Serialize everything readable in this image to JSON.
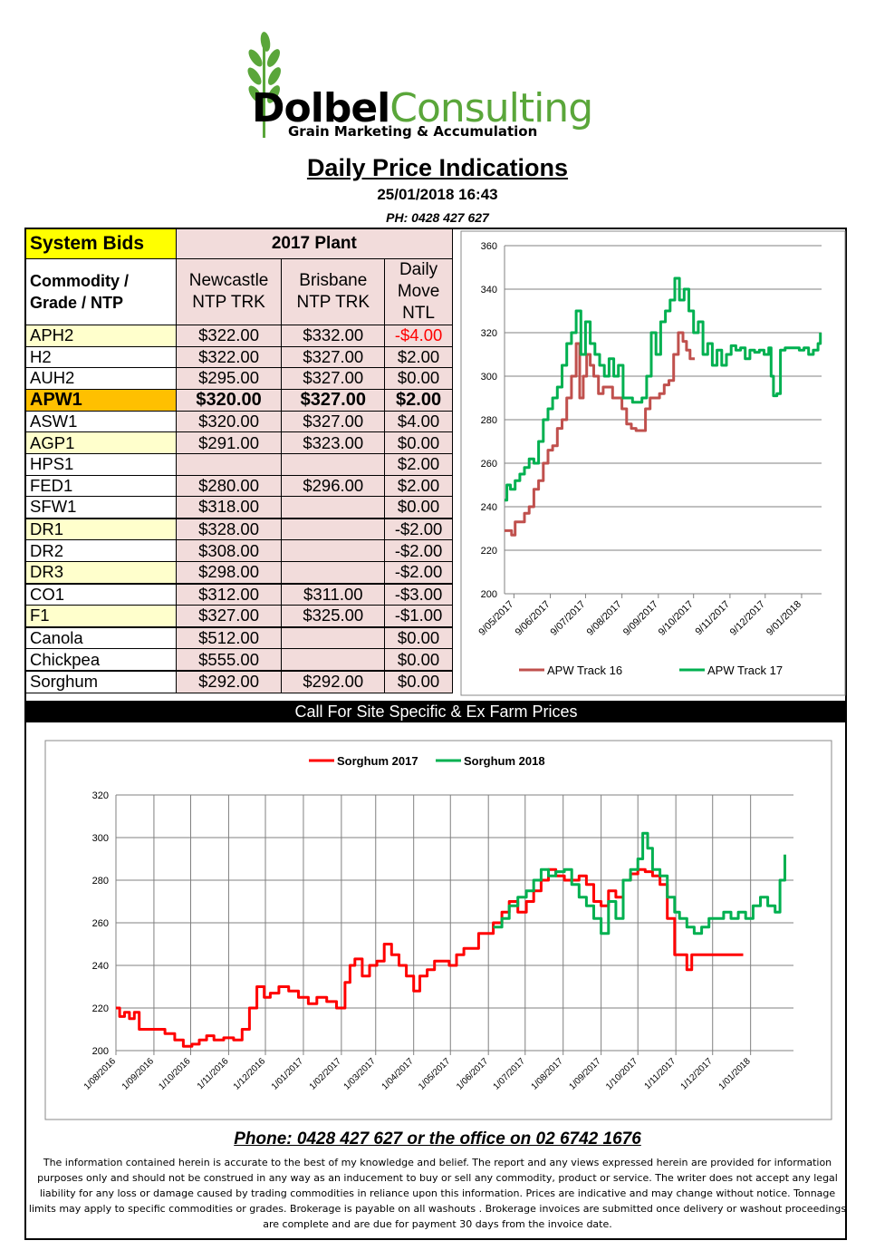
{
  "header": {
    "logo_word1": "Dolbel",
    "logo_word2": "Consulting",
    "logo_sub": "Grain Marketing & Accumulation",
    "title": "Daily Price Indications",
    "datetime": "25/01/2018 16:43",
    "phone": "PH: 0428 427 627"
  },
  "table": {
    "system_bids": "System Bids",
    "plant": "2017 Plant",
    "commodity_header": "Commodity / Grade / NTP",
    "col_newcastle": "Newcastle NTP TRK",
    "col_brisbane": "Brisbane NTP TRK",
    "col_move": "Daily Move NTL",
    "rows": [
      {
        "grade": "APH2",
        "newcastle": "$322.00",
        "brisbane": "$332.00",
        "move": "-$4.00"
      },
      {
        "grade": "H2",
        "newcastle": "$322.00",
        "brisbane": "$327.00",
        "move": "$2.00"
      },
      {
        "grade": "AUH2",
        "newcastle": "$295.00",
        "brisbane": "$327.00",
        "move": "$0.00"
      },
      {
        "grade": "APW1",
        "newcastle": "$320.00",
        "brisbane": "$327.00",
        "move": "$2.00"
      },
      {
        "grade": "ASW1",
        "newcastle": "$320.00",
        "brisbane": "$327.00",
        "move": "$4.00"
      },
      {
        "grade": "AGP1",
        "newcastle": "$291.00",
        "brisbane": "$323.00",
        "move": "$0.00"
      },
      {
        "grade": "HPS1",
        "newcastle": "",
        "brisbane": "",
        "move": "$2.00"
      },
      {
        "grade": "FED1",
        "newcastle": "$280.00",
        "brisbane": "$296.00",
        "move": "$2.00"
      },
      {
        "grade": "SFW1",
        "newcastle": "$318.00",
        "brisbane": "",
        "move": "$0.00"
      },
      {
        "grade": "DR1",
        "newcastle": "$328.00",
        "brisbane": "",
        "move": "-$2.00"
      },
      {
        "grade": "DR2",
        "newcastle": "$308.00",
        "brisbane": "",
        "move": "-$2.00"
      },
      {
        "grade": "DR3",
        "newcastle": "$298.00",
        "brisbane": "",
        "move": "-$2.00"
      },
      {
        "grade": "CO1",
        "newcastle": "$312.00",
        "brisbane": "$311.00",
        "move": "-$3.00"
      },
      {
        "grade": "F1",
        "newcastle": "$327.00",
        "brisbane": "$325.00",
        "move": "-$1.00"
      },
      {
        "grade": "Canola",
        "newcastle": "$512.00",
        "brisbane": "",
        "move": "$0.00"
      },
      {
        "grade": "Chickpea",
        "newcastle": "$555.00",
        "brisbane": "",
        "move": "$0.00"
      },
      {
        "grade": "Sorghum",
        "newcastle": "$292.00",
        "brisbane": "$292.00",
        "move": "$0.00"
      }
    ]
  },
  "call_bar": "Call For Site Specific & Ex Farm Prices",
  "footer": {
    "phone": "Phone: 0428 427 627 or the office on 02 6742 1676",
    "disclaimer": "The information contained herein is accurate to the best of my knowledge and belief.  The report and any views expressed herein are provided for information purposes only and should not be construed in any way as an inducement to buy or sell any commodity, product or service. The writer does not accept any legal liability for any loss or damage caused by trading commodities in reliance upon this information. Prices are indicative and may change without notice. Tonnage limits may apply to specific commodities or grades.  Brokerage is payable on all washouts . Brokerage invoices are submitted once delivery or washout proceedings are complete and are due for payment 30 days from the invoice date."
  },
  "colors": {
    "red": "#c0504d",
    "green": "#00b050",
    "bright_red": "#ff0000"
  },
  "chart_data": [
    {
      "type": "line",
      "title": "",
      "xlabel": "",
      "ylabel": "",
      "ylim": [
        200,
        360
      ],
      "yticks": [
        200,
        220,
        240,
        260,
        280,
        300,
        320,
        340,
        360
      ],
      "xlim": [
        "2017-05-01",
        "2018-01-26"
      ],
      "xtick_labels": [
        "9/05/2017",
        "9/06/2017",
        "9/07/2017",
        "9/08/2017",
        "9/09/2017",
        "9/10/2017",
        "9/11/2017",
        "9/12/2017",
        "9/01/2018"
      ],
      "grid": true,
      "legend": "bottom",
      "series": [
        {
          "name": "APW Track 16",
          "color": "#c0504d",
          "x": [
            "2017-05-01",
            "2017-05-04",
            "2017-05-07",
            "2017-05-10",
            "2017-05-14",
            "2017-05-18",
            "2017-05-22",
            "2017-05-26",
            "2017-05-30",
            "2017-06-03",
            "2017-06-07",
            "2017-06-11",
            "2017-06-15",
            "2017-06-19",
            "2017-06-23",
            "2017-06-27",
            "2017-07-01",
            "2017-07-04",
            "2017-07-07",
            "2017-07-10",
            "2017-07-13",
            "2017-07-16",
            "2017-07-20",
            "2017-07-24",
            "2017-07-28",
            "2017-08-01",
            "2017-08-05",
            "2017-08-09",
            "2017-08-13",
            "2017-08-17",
            "2017-08-21",
            "2017-08-25",
            "2017-08-29",
            "2017-09-02",
            "2017-09-06",
            "2017-09-10",
            "2017-09-14",
            "2017-09-18",
            "2017-09-22",
            "2017-09-26",
            "2017-09-30",
            "2017-10-03",
            "2017-10-06",
            "2017-10-10"
          ],
          "y": [
            229,
            229,
            227,
            233,
            233,
            237,
            240,
            248,
            252,
            260,
            266,
            268,
            276,
            280,
            290,
            300,
            315,
            290,
            300,
            310,
            305,
            300,
            292,
            295,
            295,
            290,
            290,
            285,
            278,
            276,
            275,
            275,
            285,
            290,
            290,
            292,
            296,
            298,
            310,
            320,
            316,
            312,
            308,
            308
          ]
        },
        {
          "name": "APW Track 17",
          "color": "#00b050",
          "x": [
            "2017-05-01",
            "2017-05-03",
            "2017-05-06",
            "2017-05-10",
            "2017-05-14",
            "2017-05-18",
            "2017-05-22",
            "2017-05-26",
            "2017-05-30",
            "2017-06-03",
            "2017-06-07",
            "2017-06-11",
            "2017-06-15",
            "2017-06-19",
            "2017-06-23",
            "2017-06-27",
            "2017-07-01",
            "2017-07-05",
            "2017-07-09",
            "2017-07-13",
            "2017-07-17",
            "2017-07-21",
            "2017-07-25",
            "2017-07-29",
            "2017-08-02",
            "2017-08-06",
            "2017-08-10",
            "2017-08-14",
            "2017-08-18",
            "2017-08-22",
            "2017-08-26",
            "2017-08-30",
            "2017-09-03",
            "2017-09-07",
            "2017-09-11",
            "2017-09-15",
            "2017-09-19",
            "2017-09-23",
            "2017-09-27",
            "2017-10-01",
            "2017-10-05",
            "2017-10-09",
            "2017-10-13",
            "2017-10-17",
            "2017-10-21",
            "2017-10-25",
            "2017-10-29",
            "2017-11-02",
            "2017-11-06",
            "2017-11-10",
            "2017-11-14",
            "2017-11-18",
            "2017-11-22",
            "2017-11-26",
            "2017-11-30",
            "2017-12-04",
            "2017-12-08",
            "2017-12-12",
            "2017-12-14",
            "2017-12-16",
            "2017-12-19",
            "2017-12-22",
            "2017-12-26",
            "2017-12-30",
            "2018-01-03",
            "2018-01-07",
            "2018-01-11",
            "2018-01-15",
            "2018-01-19",
            "2018-01-23",
            "2018-01-25"
          ],
          "y": [
            243,
            250,
            248,
            252,
            255,
            258,
            262,
            260,
            270,
            280,
            285,
            290,
            295,
            305,
            315,
            320,
            330,
            310,
            325,
            315,
            310,
            305,
            300,
            308,
            300,
            305,
            290,
            290,
            288,
            288,
            290,
            300,
            320,
            310,
            325,
            330,
            335,
            345,
            335,
            340,
            330,
            320,
            325,
            310,
            315,
            305,
            312,
            305,
            310,
            314,
            312,
            313,
            308,
            312,
            311,
            312,
            310,
            313,
            300,
            291,
            292,
            312,
            313,
            313,
            313,
            312,
            313,
            310,
            312,
            315,
            320
          ]
        }
      ]
    },
    {
      "type": "line",
      "title": "",
      "xlabel": "",
      "ylabel": "",
      "ylim": [
        200,
        320
      ],
      "yticks": [
        200,
        220,
        240,
        260,
        280,
        300,
        320
      ],
      "xlim": [
        "2016-08-01",
        "2018-02-05"
      ],
      "xtick_labels": [
        "1/08/2016",
        "1/09/2016",
        "1/10/2016",
        "1/11/2016",
        "1/12/2016",
        "1/01/2017",
        "1/02/2017",
        "1/03/2017",
        "1/04/2017",
        "1/05/2017",
        "1/06/2017",
        "1/07/2017",
        "1/08/2017",
        "1/09/2017",
        "1/10/2017",
        "1/11/2017",
        "1/12/2017",
        "1/01/2018"
      ],
      "grid": true,
      "legend": "top",
      "series": [
        {
          "name": "Sorghum 2017",
          "color": "#ff0000",
          "x": [
            "2016-08-01",
            "2016-08-04",
            "2016-08-08",
            "2016-08-12",
            "2016-08-16",
            "2016-08-20",
            "2016-08-26",
            "2016-09-02",
            "2016-09-10",
            "2016-09-18",
            "2016-09-25",
            "2016-10-02",
            "2016-10-08",
            "2016-10-14",
            "2016-10-20",
            "2016-10-28",
            "2016-11-05",
            "2016-11-12",
            "2016-11-18",
            "2016-11-24",
            "2016-11-30",
            "2016-12-05",
            "2016-12-12",
            "2016-12-20",
            "2016-12-28",
            "2017-01-05",
            "2017-01-12",
            "2017-01-20",
            "2017-01-28",
            "2017-02-04",
            "2017-02-08",
            "2017-02-12",
            "2017-02-18",
            "2017-02-24",
            "2017-03-02",
            "2017-03-08",
            "2017-03-14",
            "2017-03-20",
            "2017-03-26",
            "2017-04-01",
            "2017-04-06",
            "2017-04-12",
            "2017-04-18",
            "2017-04-24",
            "2017-04-30",
            "2017-05-06",
            "2017-05-12",
            "2017-05-18",
            "2017-05-24",
            "2017-05-30",
            "2017-06-05",
            "2017-06-12",
            "2017-06-18",
            "2017-06-25",
            "2017-07-02",
            "2017-07-08",
            "2017-07-14",
            "2017-07-20",
            "2017-07-26",
            "2017-08-02",
            "2017-08-08",
            "2017-08-14",
            "2017-08-20",
            "2017-08-26",
            "2017-09-01",
            "2017-09-07",
            "2017-09-13",
            "2017-09-19",
            "2017-09-25",
            "2017-10-01",
            "2017-10-07",
            "2017-10-13",
            "2017-10-19",
            "2017-10-25",
            "2017-10-31",
            "2017-11-06",
            "2017-11-10",
            "2017-11-14",
            "2017-11-20",
            "2017-12-01",
            "2017-12-15",
            "2017-12-26"
          ],
          "y": [
            220,
            216,
            218,
            215,
            218,
            210,
            210,
            210,
            208,
            205,
            202,
            203,
            205,
            207,
            205,
            206,
            205,
            210,
            220,
            230,
            225,
            227,
            230,
            228,
            225,
            222,
            225,
            223,
            220,
            232,
            240,
            243,
            235,
            240,
            242,
            250,
            245,
            240,
            235,
            228,
            235,
            238,
            242,
            242,
            240,
            245,
            248,
            248,
            255,
            255,
            260,
            265,
            270,
            265,
            270,
            275,
            280,
            285,
            282,
            280,
            280,
            282,
            278,
            270,
            268,
            275,
            272,
            280,
            283,
            285,
            284,
            282,
            278,
            262,
            245,
            245,
            238,
            245,
            245,
            245,
            245,
            245
          ]
        },
        {
          "name": "Sorghum 2018",
          "color": "#00b050",
          "x": [
            "2017-06-05",
            "2017-06-12",
            "2017-06-18",
            "2017-06-25",
            "2017-07-02",
            "2017-07-08",
            "2017-07-14",
            "2017-07-20",
            "2017-07-26",
            "2017-08-02",
            "2017-08-08",
            "2017-08-14",
            "2017-08-20",
            "2017-08-26",
            "2017-09-01",
            "2017-09-07",
            "2017-09-13",
            "2017-09-19",
            "2017-09-25",
            "2017-10-01",
            "2017-10-05",
            "2017-10-09",
            "2017-10-13",
            "2017-10-19",
            "2017-10-25",
            "2017-10-31",
            "2017-11-04",
            "2017-11-10",
            "2017-11-16",
            "2017-11-22",
            "2017-11-28",
            "2017-12-04",
            "2017-12-10",
            "2017-12-16",
            "2017-12-22",
            "2017-12-28",
            "2018-01-03",
            "2018-01-09",
            "2018-01-15",
            "2018-01-21",
            "2018-01-25",
            "2018-01-29"
          ],
          "y": [
            258,
            262,
            268,
            272,
            275,
            280,
            285,
            282,
            284,
            285,
            278,
            272,
            268,
            262,
            255,
            270,
            262,
            280,
            285,
            290,
            302,
            295,
            285,
            282,
            272,
            265,
            262,
            258,
            255,
            258,
            262,
            262,
            265,
            262,
            265,
            262,
            268,
            272,
            268,
            265,
            280,
            292
          ]
        }
      ]
    }
  ]
}
